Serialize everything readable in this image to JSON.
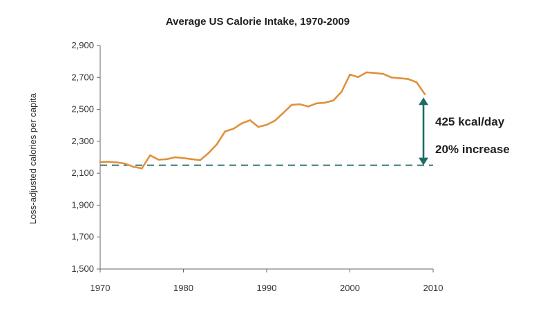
{
  "chart_data": {
    "type": "line",
    "title": "Average US Calorie Intake, 1970-2009",
    "xlabel": "",
    "ylabel": "Loss-adjusted calories per capita",
    "xlim": [
      1970,
      2010
    ],
    "ylim": [
      1500,
      2900
    ],
    "x_ticks": [
      "1970",
      "1980",
      "1990",
      "2000",
      "2010"
    ],
    "y_ticks": [
      "1,500",
      "1,700",
      "1,900",
      "2,100",
      "2,300",
      "2,500",
      "2,700",
      "2,900"
    ],
    "grid": false,
    "series": [
      {
        "color": "#E0913A",
        "x": [
          1970,
          1971,
          1972,
          1973,
          1974,
          1975,
          1976,
          1977,
          1978,
          1979,
          1980,
          1981,
          1982,
          1983,
          1984,
          1985,
          1986,
          1987,
          1988,
          1989,
          1990,
          1991,
          1992,
          1993,
          1994,
          1995,
          1996,
          1997,
          1998,
          1999,
          2000,
          2001,
          2002,
          2003,
          2004,
          2005,
          2006,
          2007,
          2008,
          2009
        ],
        "values": [
          2170,
          2172,
          2168,
          2160,
          2140,
          2130,
          2212,
          2185,
          2188,
          2200,
          2195,
          2188,
          2182,
          2225,
          2280,
          2362,
          2378,
          2412,
          2432,
          2390,
          2403,
          2430,
          2478,
          2528,
          2532,
          2518,
          2538,
          2542,
          2555,
          2610,
          2718,
          2702,
          2732,
          2728,
          2722,
          2700,
          2695,
          2690,
          2670,
          2595
        ]
      }
    ],
    "baseline": {
      "value": 2150,
      "color": "#2E6E73",
      "style": "dashed"
    },
    "annotation": {
      "arrow_color": "#1E6B66",
      "from_value": 2150,
      "to_value": 2575,
      "line1": "425 kcal/day",
      "line2": "20% increase"
    }
  }
}
